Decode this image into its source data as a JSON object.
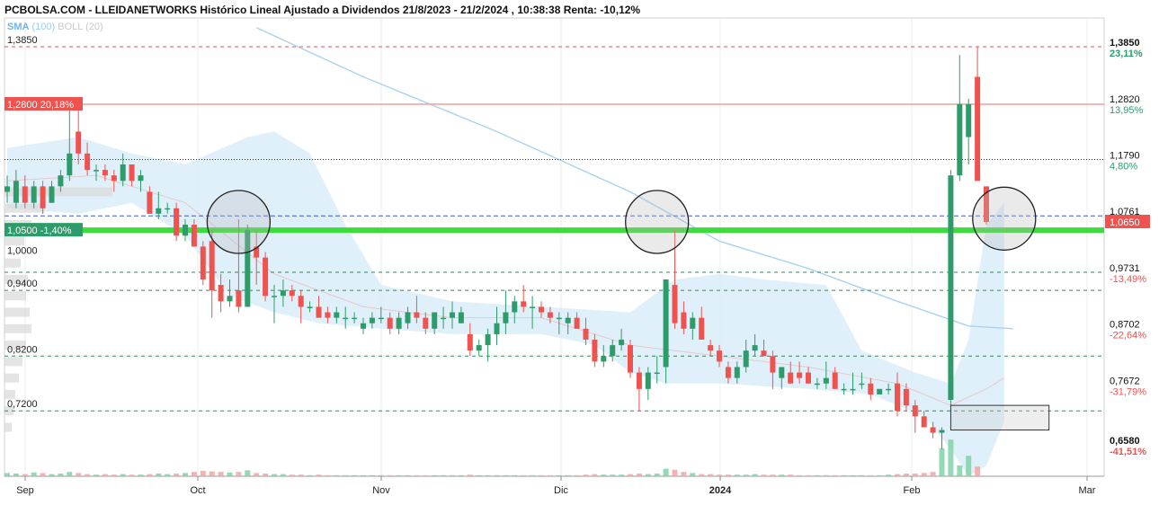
{
  "header": {
    "title": "PCBOLSA.COM - LLEIDANETWORKS Histórico Lineal Ajustado a Dividendos 21/8/2023 - 21/2/2024 , 10:38:38 Renta: -10,12%"
  },
  "legend": {
    "sma_label": "SMA",
    "sma_period": "(100)",
    "boll_label": "BOLL",
    "boll_period": "(20)"
  },
  "colors": {
    "up": "#2e9b6a",
    "down": "#ef5350",
    "support_line": "#3ddc3d",
    "current_price_line": "#3b5bdb",
    "bollinger_band": "#d6ebf9",
    "sma_line": "#a8d3f0",
    "dashed_level": "#2e8b57",
    "top_dashed": "#ef5350",
    "resistance_line": "#f4a6a0"
  },
  "chart_data": {
    "type": "candlestick",
    "title": "PCBOLSA.COM - LLEIDANETWORKS Histórico Lineal Ajustado a Dividendos 21/8/2023 - 21/2/2024 , 10:38:38 Renta: -10,12%",
    "ylim": [
      0.63,
      1.43
    ],
    "x_labels": [
      {
        "label": "Sep",
        "t": 0
      },
      {
        "label": "Oct",
        "t": 1
      },
      {
        "label": "Nov",
        "t": 2
      },
      {
        "label": "Dic",
        "t": 3
      },
      {
        "label": "2024",
        "t": 4
      },
      {
        "label": "Feb",
        "t": 5
      },
      {
        "label": "Mar",
        "t": 6
      }
    ],
    "left_labels": [
      {
        "text": "1,3850",
        "value": 1.385
      },
      {
        "text": "1,0000",
        "value": 1.0
      },
      {
        "text": "0,9400",
        "value": 0.94
      },
      {
        "text": "0,8200",
        "value": 0.82
      },
      {
        "text": "0,7200",
        "value": 0.72
      }
    ],
    "left_tags": [
      {
        "text": "1,2800  20,18%",
        "value": 1.28,
        "color": "#ef5350"
      },
      {
        "text": "1,0500  -1,40%",
        "value": 1.05,
        "color": "#2e9b6a"
      }
    ],
    "right_labels": [
      {
        "price": "1,3850",
        "pct": "23,11%",
        "value": 1.385,
        "pct_color": "#2e9b6a",
        "bold": true
      },
      {
        "price": "1,2820",
        "pct": "13,95%",
        "value": 1.282,
        "pct_color": "#2e9b6a",
        "bold": false
      },
      {
        "price": "1,1790",
        "pct": "4,80%",
        "value": 1.179,
        "pct_color": "#2e9b6a",
        "bold": false
      },
      {
        "price": "1,0761",
        "pct": "",
        "value": 1.0761,
        "pct_color": "#2e9b6a",
        "bold": false
      },
      {
        "price": "0,9731",
        "pct": "-13,49%",
        "value": 0.9731,
        "pct_color": "#ef5350",
        "bold": false
      },
      {
        "price": "0,8702",
        "pct": "-22,64%",
        "value": 0.8702,
        "pct_color": "#ef5350",
        "bold": false
      },
      {
        "price": "0,7672",
        "pct": "-31,79%",
        "value": 0.7672,
        "pct_color": "#ef5350",
        "bold": false
      },
      {
        "price": "0,6580",
        "pct": "-41,51%",
        "value": 0.658,
        "pct_color": "#ef5350",
        "bold": true
      }
    ],
    "current_price": {
      "text": "1,0650",
      "value": 1.065
    },
    "horizontal_levels": [
      {
        "value": 1.385,
        "style": "dashed",
        "role": "top"
      },
      {
        "value": 1.28,
        "style": "solid",
        "role": "resistance"
      },
      {
        "value": 1.179,
        "style": "dotted",
        "role": "level"
      },
      {
        "value": 1.0761,
        "style": "dashed-blue",
        "role": "level"
      },
      {
        "value": 1.05,
        "style": "solid-green",
        "role": "support"
      },
      {
        "value": 0.9731,
        "style": "dashed",
        "role": "level"
      },
      {
        "value": 0.94,
        "style": "dashed",
        "role": "level"
      },
      {
        "value": 0.82,
        "style": "dashed",
        "role": "level"
      },
      {
        "value": 0.72,
        "style": "dashed",
        "role": "level"
      }
    ],
    "candles": [
      {
        "o": 1.12,
        "h": 1.15,
        "l": 1.1,
        "c": 1.13
      },
      {
        "o": 1.1,
        "h": 1.16,
        "l": 1.09,
        "c": 1.14
      },
      {
        "o": 1.13,
        "h": 1.15,
        "l": 1.09,
        "c": 1.1
      },
      {
        "o": 1.1,
        "h": 1.14,
        "l": 1.09,
        "c": 1.13
      },
      {
        "o": 1.13,
        "h": 1.14,
        "l": 1.08,
        "c": 1.09
      },
      {
        "o": 1.1,
        "h": 1.14,
        "l": 1.1,
        "c": 1.13
      },
      {
        "o": 1.13,
        "h": 1.16,
        "l": 1.12,
        "c": 1.15
      },
      {
        "o": 1.15,
        "h": 1.29,
        "l": 1.14,
        "c": 1.19
      },
      {
        "o": 1.23,
        "h": 1.27,
        "l": 1.17,
        "c": 1.19
      },
      {
        "o": 1.19,
        "h": 1.21,
        "l": 1.15,
        "c": 1.16
      },
      {
        "o": 1.16,
        "h": 1.17,
        "l": 1.14,
        "c": 1.16
      },
      {
        "o": 1.16,
        "h": 1.17,
        "l": 1.14,
        "c": 1.15
      },
      {
        "o": 1.15,
        "h": 1.16,
        "l": 1.12,
        "c": 1.14
      },
      {
        "o": 1.14,
        "h": 1.19,
        "l": 1.13,
        "c": 1.17
      },
      {
        "o": 1.17,
        "h": 1.17,
        "l": 1.13,
        "c": 1.14
      },
      {
        "o": 1.14,
        "h": 1.16,
        "l": 1.12,
        "c": 1.15
      },
      {
        "o": 1.12,
        "h": 1.13,
        "l": 1.08,
        "c": 1.08
      },
      {
        "o": 1.08,
        "h": 1.12,
        "l": 1.07,
        "c": 1.09
      },
      {
        "o": 1.09,
        "h": 1.1,
        "l": 1.08,
        "c": 1.09
      },
      {
        "o": 1.09,
        "h": 1.1,
        "l": 1.03,
        "c": 1.04
      },
      {
        "o": 1.04,
        "h": 1.07,
        "l": 1.03,
        "c": 1.06
      },
      {
        "o": 1.06,
        "h": 1.07,
        "l": 1.02,
        "c": 1.02
      },
      {
        "o": 1.02,
        "h": 1.03,
        "l": 0.95,
        "c": 0.96
      },
      {
        "o": 1.03,
        "h": 1.05,
        "l": 0.89,
        "c": 0.94
      },
      {
        "o": 0.95,
        "h": 0.97,
        "l": 0.9,
        "c": 0.92
      },
      {
        "o": 0.92,
        "h": 0.96,
        "l": 0.91,
        "c": 0.93
      },
      {
        "o": 0.94,
        "h": 1.07,
        "l": 0.9,
        "c": 0.91
      },
      {
        "o": 0.91,
        "h": 1.06,
        "l": 0.91,
        "c": 1.05
      },
      {
        "o": 1.02,
        "h": 1.05,
        "l": 0.95,
        "c": 1.0
      },
      {
        "o": 1.0,
        "h": 1.01,
        "l": 0.92,
        "c": 0.93
      },
      {
        "o": 0.93,
        "h": 0.95,
        "l": 0.88,
        "c": 0.93
      },
      {
        "o": 0.93,
        "h": 0.96,
        "l": 0.91,
        "c": 0.94
      },
      {
        "o": 0.94,
        "h": 0.95,
        "l": 0.92,
        "c": 0.93
      },
      {
        "o": 0.93,
        "h": 0.94,
        "l": 0.88,
        "c": 0.91
      },
      {
        "o": 0.91,
        "h": 0.92,
        "l": 0.9,
        "c": 0.91
      },
      {
        "o": 0.91,
        "h": 0.93,
        "l": 0.89,
        "c": 0.89
      },
      {
        "o": 0.9,
        "h": 0.91,
        "l": 0.88,
        "c": 0.89
      },
      {
        "o": 0.89,
        "h": 0.91,
        "l": 0.88,
        "c": 0.9
      },
      {
        "o": 0.89,
        "h": 0.91,
        "l": 0.87,
        "c": 0.89
      },
      {
        "o": 0.89,
        "h": 0.9,
        "l": 0.88,
        "c": 0.89
      },
      {
        "o": 0.87,
        "h": 0.89,
        "l": 0.86,
        "c": 0.88
      },
      {
        "o": 0.88,
        "h": 0.9,
        "l": 0.87,
        "c": 0.89
      },
      {
        "o": 0.89,
        "h": 0.91,
        "l": 0.88,
        "c": 0.89
      },
      {
        "o": 0.89,
        "h": 0.9,
        "l": 0.86,
        "c": 0.87
      },
      {
        "o": 0.87,
        "h": 0.9,
        "l": 0.86,
        "c": 0.89
      },
      {
        "o": 0.88,
        "h": 0.91,
        "l": 0.87,
        "c": 0.9
      },
      {
        "o": 0.9,
        "h": 0.93,
        "l": 0.88,
        "c": 0.89
      },
      {
        "o": 0.89,
        "h": 0.9,
        "l": 0.86,
        "c": 0.87
      },
      {
        "o": 0.87,
        "h": 0.9,
        "l": 0.86,
        "c": 0.9
      },
      {
        "o": 0.89,
        "h": 0.91,
        "l": 0.87,
        "c": 0.89
      },
      {
        "o": 0.89,
        "h": 0.92,
        "l": 0.87,
        "c": 0.9
      },
      {
        "o": 0.88,
        "h": 0.91,
        "l": 0.88,
        "c": 0.9
      },
      {
        "o": 0.86,
        "h": 0.88,
        "l": 0.82,
        "c": 0.83
      },
      {
        "o": 0.83,
        "h": 0.85,
        "l": 0.82,
        "c": 0.84
      },
      {
        "o": 0.84,
        "h": 0.87,
        "l": 0.81,
        "c": 0.86
      },
      {
        "o": 0.86,
        "h": 0.91,
        "l": 0.84,
        "c": 0.88
      },
      {
        "o": 0.88,
        "h": 0.94,
        "l": 0.86,
        "c": 0.9
      },
      {
        "o": 0.9,
        "h": 0.93,
        "l": 0.88,
        "c": 0.92
      },
      {
        "o": 0.92,
        "h": 0.95,
        "l": 0.9,
        "c": 0.91
      },
      {
        "o": 0.91,
        "h": 0.93,
        "l": 0.87,
        "c": 0.91
      },
      {
        "o": 0.91,
        "h": 0.92,
        "l": 0.89,
        "c": 0.9
      },
      {
        "o": 0.9,
        "h": 0.91,
        "l": 0.88,
        "c": 0.89
      },
      {
        "o": 0.89,
        "h": 0.9,
        "l": 0.86,
        "c": 0.89
      },
      {
        "o": 0.88,
        "h": 0.9,
        "l": 0.86,
        "c": 0.89
      },
      {
        "o": 0.89,
        "h": 0.9,
        "l": 0.87,
        "c": 0.87
      },
      {
        "o": 0.87,
        "h": 0.89,
        "l": 0.84,
        "c": 0.85
      },
      {
        "o": 0.85,
        "h": 0.86,
        "l": 0.8,
        "c": 0.81
      },
      {
        "o": 0.81,
        "h": 0.84,
        "l": 0.8,
        "c": 0.82
      },
      {
        "o": 0.82,
        "h": 0.85,
        "l": 0.81,
        "c": 0.84
      },
      {
        "o": 0.84,
        "h": 0.87,
        "l": 0.83,
        "c": 0.85
      },
      {
        "o": 0.84,
        "h": 0.85,
        "l": 0.78,
        "c": 0.79
      },
      {
        "o": 0.79,
        "h": 0.8,
        "l": 0.72,
        "c": 0.76
      },
      {
        "o": 0.76,
        "h": 0.8,
        "l": 0.74,
        "c": 0.79
      },
      {
        "o": 0.79,
        "h": 0.82,
        "l": 0.77,
        "c": 0.79
      },
      {
        "o": 0.8,
        "h": 0.96,
        "l": 0.77,
        "c": 0.96
      },
      {
        "o": 0.95,
        "h": 1.05,
        "l": 0.87,
        "c": 0.88
      },
      {
        "o": 0.9,
        "h": 0.92,
        "l": 0.86,
        "c": 0.87
      },
      {
        "o": 0.87,
        "h": 0.9,
        "l": 0.85,
        "c": 0.89
      },
      {
        "o": 0.89,
        "h": 0.91,
        "l": 0.85,
        "c": 0.85
      },
      {
        "o": 0.84,
        "h": 0.85,
        "l": 0.82,
        "c": 0.83
      },
      {
        "o": 0.83,
        "h": 0.84,
        "l": 0.8,
        "c": 0.81
      },
      {
        "o": 0.8,
        "h": 0.81,
        "l": 0.77,
        "c": 0.78
      },
      {
        "o": 0.78,
        "h": 0.81,
        "l": 0.77,
        "c": 0.8
      },
      {
        "o": 0.8,
        "h": 0.85,
        "l": 0.79,
        "c": 0.83
      },
      {
        "o": 0.83,
        "h": 0.86,
        "l": 0.82,
        "c": 0.84
      },
      {
        "o": 0.83,
        "h": 0.85,
        "l": 0.82,
        "c": 0.82
      },
      {
        "o": 0.82,
        "h": 0.83,
        "l": 0.76,
        "c": 0.79
      },
      {
        "o": 0.78,
        "h": 0.8,
        "l": 0.76,
        "c": 0.8
      },
      {
        "o": 0.79,
        "h": 0.81,
        "l": 0.77,
        "c": 0.77
      },
      {
        "o": 0.79,
        "h": 0.81,
        "l": 0.77,
        "c": 0.78
      },
      {
        "o": 0.79,
        "h": 0.8,
        "l": 0.77,
        "c": 0.77
      },
      {
        "o": 0.77,
        "h": 0.78,
        "l": 0.76,
        "c": 0.77
      },
      {
        "o": 0.77,
        "h": 0.81,
        "l": 0.76,
        "c": 0.78
      },
      {
        "o": 0.79,
        "h": 0.8,
        "l": 0.76,
        "c": 0.76
      },
      {
        "o": 0.76,
        "h": 0.77,
        "l": 0.75,
        "c": 0.76
      },
      {
        "o": 0.76,
        "h": 0.79,
        "l": 0.75,
        "c": 0.76
      },
      {
        "o": 0.77,
        "h": 0.79,
        "l": 0.76,
        "c": 0.77
      },
      {
        "o": 0.77,
        "h": 0.78,
        "l": 0.74,
        "c": 0.75
      },
      {
        "o": 0.75,
        "h": 0.76,
        "l": 0.75,
        "c": 0.76
      },
      {
        "o": 0.76,
        "h": 0.77,
        "l": 0.75,
        "c": 0.76
      },
      {
        "o": 0.77,
        "h": 0.79,
        "l": 0.71,
        "c": 0.72
      },
      {
        "o": 0.76,
        "h": 0.77,
        "l": 0.72,
        "c": 0.73
      },
      {
        "o": 0.73,
        "h": 0.74,
        "l": 0.68,
        "c": 0.71
      },
      {
        "o": 0.71,
        "h": 0.72,
        "l": 0.69,
        "c": 0.69
      },
      {
        "o": 0.69,
        "h": 0.7,
        "l": 0.67,
        "c": 0.68
      },
      {
        "o": 0.68,
        "h": 0.69,
        "l": 0.65,
        "c": 0.685
      },
      {
        "o": 0.74,
        "h": 1.16,
        "l": 0.73,
        "c": 1.15
      },
      {
        "o": 1.15,
        "h": 1.37,
        "l": 1.14,
        "c": 1.28
      },
      {
        "o": 1.22,
        "h": 1.29,
        "l": 1.17,
        "c": 1.28
      },
      {
        "o": 1.33,
        "h": 1.385,
        "l": 1.14,
        "c": 1.14
      },
      {
        "o": 1.13,
        "h": 1.13,
        "l": 1.06,
        "c": 1.065
      }
    ],
    "volumes": [
      0.3,
      0.25,
      0.2,
      0.35,
      0.3,
      0.2,
      0.25,
      0.4,
      0.3,
      0.2,
      0.15,
      0.2,
      0.15,
      0.2,
      0.15,
      0.15,
      0.2,
      0.25,
      0.2,
      0.25,
      0.3,
      0.4,
      0.5,
      0.45,
      0.4,
      0.35,
      0.4,
      0.55,
      0.3,
      0.25,
      0.2,
      0.2,
      0.15,
      0.15,
      0.1,
      0.15,
      0.1,
      0.1,
      0.1,
      0.1,
      0.1,
      0.1,
      0.1,
      0.1,
      0.1,
      0.1,
      0.1,
      0.1,
      0.1,
      0.1,
      0.1,
      0.1,
      0.15,
      0.1,
      0.1,
      0.1,
      0.1,
      0.1,
      0.1,
      0.1,
      0.1,
      0.1,
      0.1,
      0.1,
      0.1,
      0.15,
      0.2,
      0.15,
      0.15,
      0.15,
      0.2,
      0.25,
      0.2,
      0.25,
      0.7,
      0.6,
      0.4,
      0.3,
      0.2,
      0.2,
      0.15,
      0.15,
      0.15,
      0.15,
      0.2,
      0.15,
      0.15,
      0.15,
      0.15,
      0.1,
      0.1,
      0.1,
      0.1,
      0.1,
      0.1,
      0.1,
      0.1,
      0.1,
      0.1,
      0.15,
      0.2,
      0.25,
      0.25,
      0.3,
      0.4,
      2.6,
      3.4,
      1.0,
      1.9,
      0.9
    ],
    "sma100_y": [
      {
        "i": 28,
        "v": 1.42
      },
      {
        "i": 40,
        "v": 1.33
      },
      {
        "i": 55,
        "v": 1.23
      },
      {
        "i": 70,
        "v": 1.12
      },
      {
        "i": 80,
        "v": 1.03
      },
      {
        "i": 90,
        "v": 0.98
      },
      {
        "i": 100,
        "v": 0.92
      },
      {
        "i": 108,
        "v": 0.875
      },
      {
        "i": 113,
        "v": 0.87
      }
    ],
    "bollinger": {
      "upper": [
        {
          "i": 0,
          "v": 1.2
        },
        {
          "i": 8,
          "v": 1.22
        },
        {
          "i": 14,
          "v": 1.19
        },
        {
          "i": 20,
          "v": 1.17
        },
        {
          "i": 27,
          "v": 1.22
        },
        {
          "i": 30,
          "v": 1.23
        },
        {
          "i": 34,
          "v": 1.19
        },
        {
          "i": 38,
          "v": 1.06
        },
        {
          "i": 42,
          "v": 0.95
        },
        {
          "i": 50,
          "v": 0.92
        },
        {
          "i": 60,
          "v": 0.91
        },
        {
          "i": 70,
          "v": 0.9
        },
        {
          "i": 75,
          "v": 0.96
        },
        {
          "i": 80,
          "v": 0.97
        },
        {
          "i": 85,
          "v": 0.96
        },
        {
          "i": 92,
          "v": 0.95
        },
        {
          "i": 96,
          "v": 0.83
        },
        {
          "i": 102,
          "v": 0.79
        },
        {
          "i": 106,
          "v": 0.77
        },
        {
          "i": 108,
          "v": 0.85
        },
        {
          "i": 110,
          "v": 1.06
        },
        {
          "i": 112,
          "v": 1.1
        }
      ],
      "lower": [
        {
          "i": 0,
          "v": 1.09
        },
        {
          "i": 8,
          "v": 1.08
        },
        {
          "i": 14,
          "v": 1.1
        },
        {
          "i": 20,
          "v": 1.04
        },
        {
          "i": 25,
          "v": 0.93
        },
        {
          "i": 30,
          "v": 0.9
        },
        {
          "i": 35,
          "v": 0.88
        },
        {
          "i": 42,
          "v": 0.87
        },
        {
          "i": 50,
          "v": 0.86
        },
        {
          "i": 60,
          "v": 0.86
        },
        {
          "i": 66,
          "v": 0.84
        },
        {
          "i": 70,
          "v": 0.79
        },
        {
          "i": 74,
          "v": 0.77
        },
        {
          "i": 80,
          "v": 0.77
        },
        {
          "i": 90,
          "v": 0.76
        },
        {
          "i": 97,
          "v": 0.75
        },
        {
          "i": 103,
          "v": 0.71
        },
        {
          "i": 106,
          "v": 0.65
        },
        {
          "i": 108,
          "v": 0.6
        },
        {
          "i": 110,
          "v": 0.62
        },
        {
          "i": 112,
          "v": 0.7
        }
      ],
      "middle": [
        {
          "i": 0,
          "v": 1.14
        },
        {
          "i": 10,
          "v": 1.15
        },
        {
          "i": 20,
          "v": 1.1
        },
        {
          "i": 30,
          "v": 0.97
        },
        {
          "i": 40,
          "v": 0.91
        },
        {
          "i": 50,
          "v": 0.89
        },
        {
          "i": 60,
          "v": 0.89
        },
        {
          "i": 70,
          "v": 0.84
        },
        {
          "i": 80,
          "v": 0.82
        },
        {
          "i": 90,
          "v": 0.8
        },
        {
          "i": 100,
          "v": 0.77
        },
        {
          "i": 106,
          "v": 0.73
        },
        {
          "i": 110,
          "v": 0.76
        },
        {
          "i": 112,
          "v": 0.78
        }
      ]
    },
    "circles": [
      {
        "i": 26,
        "v": 1.065
      },
      {
        "i": 73,
        "v": 1.065
      },
      {
        "i": 112,
        "v": 1.071
      }
    ],
    "box": {
      "i_start": 106,
      "i_end": 113,
      "v_top": 0.73,
      "v_bottom": 0.685
    }
  }
}
